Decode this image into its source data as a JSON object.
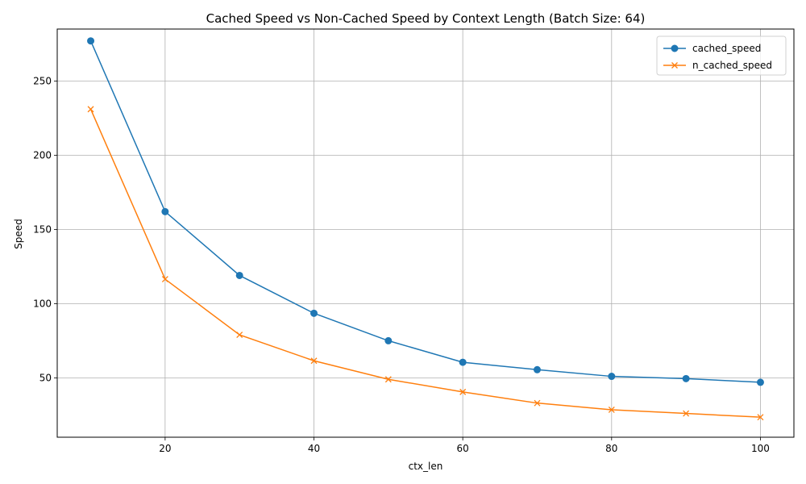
{
  "chart_data": {
    "type": "line",
    "title": "Cached Speed vs Non-Cached Speed by Context Length (Batch Size: 64)",
    "xlabel": "ctx_len",
    "ylabel": "Speed",
    "x": [
      10,
      20,
      30,
      40,
      50,
      60,
      70,
      80,
      90,
      100
    ],
    "xlim": [
      5.5,
      104.5
    ],
    "ylim": [
      10,
      285
    ],
    "xticks": [
      20,
      40,
      60,
      80,
      100
    ],
    "yticks": [
      50,
      100,
      150,
      200,
      250
    ],
    "grid": true,
    "legend_position": "top-right",
    "series": [
      {
        "name": "cached_speed",
        "color": "#1f77b4",
        "marker": "circle",
        "values": [
          277,
          162,
          119,
          93.5,
          75,
          60.5,
          55.5,
          51,
          49.5,
          47
        ]
      },
      {
        "name": "n_cached_speed",
        "color": "#ff7f0e",
        "marker": "x",
        "values": [
          231,
          116.5,
          79,
          61.5,
          49,
          40.5,
          33,
          28.5,
          26,
          23.5
        ]
      }
    ]
  }
}
